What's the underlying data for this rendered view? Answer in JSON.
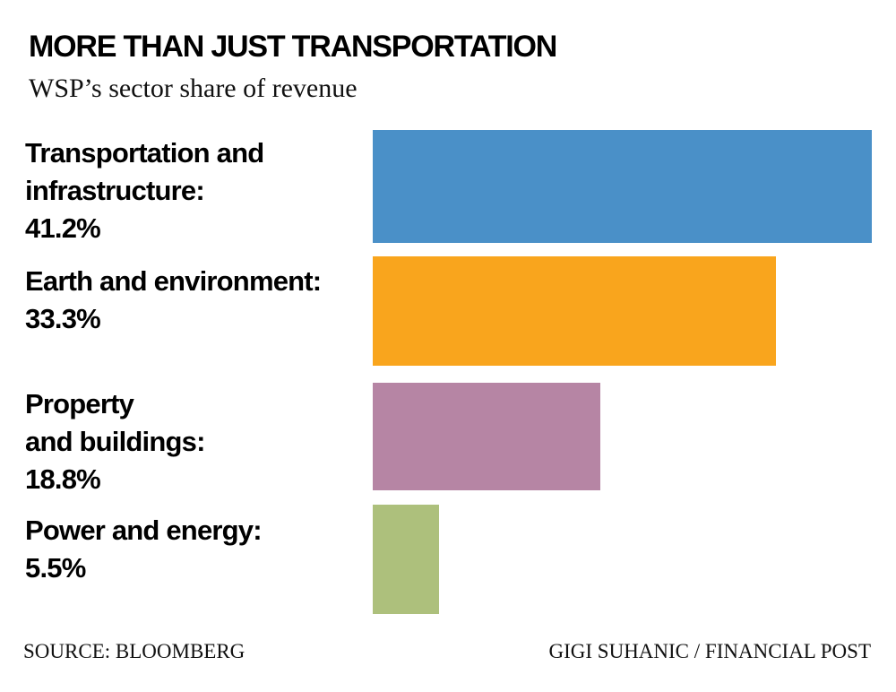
{
  "header": {
    "title": "MORE THAN JUST TRANSPORTATION",
    "subtitle": "WSP’s sector share of revenue"
  },
  "footer": {
    "source": "SOURCE: BLOOMBERG",
    "credit": "GIGI SUHANIC / FINANCIAL POST"
  },
  "rows": [
    {
      "label": "Transportation and\ninfrastructure:\n41.2%",
      "value": 41.2,
      "color": "#4a90c8"
    },
    {
      "label": "Earth and environment:\n33.3%",
      "value": 33.3,
      "color": "#f9a51d"
    },
    {
      "label": "Property\nand buildings:\n18.8%",
      "value": 18.8,
      "color": "#b685a4"
    },
    {
      "label": "Power and energy:\n5.5%",
      "value": 5.5,
      "color": "#adc07c"
    }
  ],
  "chart_data": {
    "type": "bar",
    "orientation": "horizontal",
    "title": "MORE THAN JUST TRANSPORTATION",
    "subtitle": "WSP’s sector share of revenue",
    "categories": [
      "Transportation and infrastructure",
      "Earth and environment",
      "Property and buildings",
      "Power and energy"
    ],
    "values": [
      41.2,
      33.3,
      18.8,
      5.5
    ],
    "value_suffix": "%",
    "bar_colors": [
      "#4a90c8",
      "#f9a51d",
      "#b685a4",
      "#adc07c"
    ],
    "xlabel": "",
    "ylabel": "",
    "xlim": [
      0,
      41.2
    ],
    "grid": false,
    "legend": false,
    "axes_shown": false,
    "source": "SOURCE: BLOOMBERG",
    "credit": "GIGI SUHANIC / FINANCIAL POST"
  }
}
